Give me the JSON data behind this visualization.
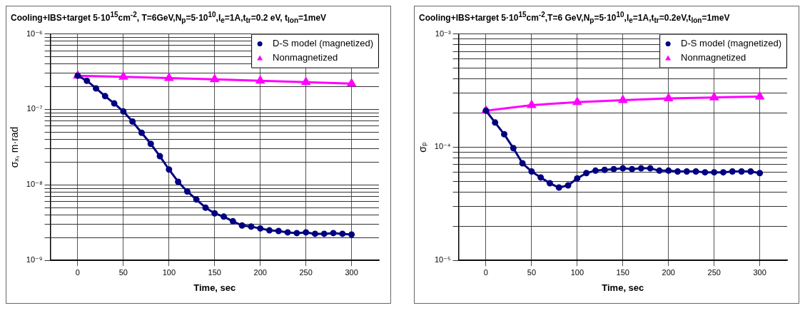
{
  "chart_data": [
    {
      "type": "line",
      "title": "Cooling+IBS+target 5·10$^{15}$cm$^{-2}$, T=6GeV,N$_{p}$=5·10$^{10}$,I$_{e}$=1A,t$_{tr}$=0.2 eV, t$_{lon}$=1meV",
      "xlabel": "Time, sec",
      "ylabel": "σₓ, m·rad",
      "log": "y",
      "grid": true,
      "legend": "top right",
      "xlim": [
        -30,
        330
      ],
      "xticks": [
        0,
        50,
        100,
        150,
        200,
        250,
        300
      ],
      "ylim": [
        1e-09,
        1e-06
      ],
      "yticks": [
        {
          "value": 1e-09,
          "label": "10⁻⁹"
        },
        {
          "value": 2e-09,
          "label": null
        },
        {
          "value": 3e-09,
          "label": null
        },
        {
          "value": 4e-09,
          "label": null
        },
        {
          "value": 5e-09,
          "label": null
        },
        {
          "value": 6e-09,
          "label": null
        },
        {
          "value": 7e-09,
          "label": null
        },
        {
          "value": 8e-09,
          "label": null
        },
        {
          "value": 9e-09,
          "label": null
        },
        {
          "value": 1e-08,
          "label": "10⁻⁸"
        },
        {
          "value": 2e-08,
          "label": null
        },
        {
          "value": 3e-08,
          "label": null
        },
        {
          "value": 4e-08,
          "label": null
        },
        {
          "value": 5e-08,
          "label": null
        },
        {
          "value": 6e-08,
          "label": null
        },
        {
          "value": 7e-08,
          "label": null
        },
        {
          "value": 8e-08,
          "label": null
        },
        {
          "value": 9e-08,
          "label": null
        },
        {
          "value": 1e-07,
          "label": "10⁻⁷"
        },
        {
          "value": 2e-07,
          "label": null
        },
        {
          "value": 3e-07,
          "label": null
        },
        {
          "value": 4e-07,
          "label": null
        },
        {
          "value": 5e-07,
          "label": null
        },
        {
          "value": 6e-07,
          "label": null
        },
        {
          "value": 7e-07,
          "label": null
        },
        {
          "value": 8e-07,
          "label": null
        },
        {
          "value": 9e-07,
          "label": null
        },
        {
          "value": 1e-06,
          "label": "10⁻⁶"
        }
      ],
      "series": [
        {
          "name": "D-S model (magnetized)",
          "color": "#000080",
          "marker": "circle",
          "x": [
            0,
            10,
            20,
            30,
            40,
            50,
            60,
            70,
            80,
            90,
            100,
            110,
            120,
            130,
            140,
            150,
            160,
            170,
            180,
            190,
            200,
            210,
            220,
            230,
            240,
            250,
            260,
            270,
            280,
            290,
            300
          ],
          "values": [
            2.8e-07,
            2.4e-07,
            1.9e-07,
            1.5e-07,
            1.2e-07,
            9.4e-08,
            6.9e-08,
            4.9e-08,
            3.5e-08,
            2.4e-08,
            1.6e-08,
            1.1e-08,
            8.2e-09,
            6.4e-09,
            5e-09,
            4.2e-09,
            3.8e-09,
            3.3e-09,
            2.9e-09,
            2.8e-09,
            2.65e-09,
            2.5e-09,
            2.45e-09,
            2.35e-09,
            2.3e-09,
            2.35e-09,
            2.25e-09,
            2.25e-09,
            2.3e-09,
            2.25e-09,
            2.2e-09
          ]
        },
        {
          "name": "Nonmagnetized",
          "color": "#ff00ff",
          "marker": "triangle",
          "x": [
            0,
            50,
            100,
            150,
            200,
            250,
            300
          ],
          "values": [
            2.8e-07,
            2.7e-07,
            2.6e-07,
            2.5e-07,
            2.4e-07,
            2.3e-07,
            2.2e-07
          ]
        }
      ]
    },
    {
      "type": "line",
      "title": "Cooling+IBS+target 5·10$^{15}$cm$^{-2}$,T=6 GeV,N$_{p}$=5·10$^{10}$,I$_{e}$=1A,t$_{tr}$=0.2eV,t$_{lon}$=1meV",
      "xlabel": "Time, sec",
      "ylabel": "σₚ",
      "log": "y",
      "grid": true,
      "legend": "top right",
      "xlim": [
        -30,
        330
      ],
      "xticks": [
        0,
        50,
        100,
        150,
        200,
        250,
        300
      ],
      "ylim": [
        1e-05,
        0.001
      ],
      "yticks": [
        {
          "value": 1e-05,
          "label": "10⁻⁵"
        },
        {
          "value": 2e-05,
          "label": null
        },
        {
          "value": 3e-05,
          "label": null
        },
        {
          "value": 4e-05,
          "label": null
        },
        {
          "value": 5e-05,
          "label": null
        },
        {
          "value": 6e-05,
          "label": null
        },
        {
          "value": 7e-05,
          "label": null
        },
        {
          "value": 8e-05,
          "label": null
        },
        {
          "value": 9e-05,
          "label": null
        },
        {
          "value": 0.0001,
          "label": "10⁻⁴"
        },
        {
          "value": 0.0002,
          "label": null
        },
        {
          "value": 0.0003,
          "label": null
        },
        {
          "value": 0.0004,
          "label": null
        },
        {
          "value": 0.0005,
          "label": null
        },
        {
          "value": 0.0006,
          "label": null
        },
        {
          "value": 0.0007,
          "label": null
        },
        {
          "value": 0.0008,
          "label": null
        },
        {
          "value": 0.0009,
          "label": null
        },
        {
          "value": 0.001,
          "label": "10⁻³"
        }
      ],
      "series": [
        {
          "name": "D-S model (magnetized)",
          "color": "#000080",
          "marker": "circle",
          "x": [
            0,
            10,
            20,
            30,
            40,
            50,
            60,
            70,
            80,
            90,
            100,
            110,
            120,
            130,
            140,
            150,
            160,
            170,
            180,
            190,
            200,
            210,
            220,
            230,
            240,
            250,
            260,
            270,
            280,
            290,
            300
          ],
          "values": [
            0.00021,
            0.000165,
            0.00013,
            9.8e-05,
            7.2e-05,
            6.1e-05,
            5.4e-05,
            4.8e-05,
            4.4e-05,
            4.6e-05,
            5.3e-05,
            5.9e-05,
            6.2e-05,
            6.3e-05,
            6.4e-05,
            6.5e-05,
            6.4e-05,
            6.5e-05,
            6.5e-05,
            6.2e-05,
            6.2e-05,
            6.1e-05,
            6.1e-05,
            6.1e-05,
            6e-05,
            6e-05,
            6e-05,
            6.1e-05,
            6.1e-05,
            6.1e-05,
            5.9e-05
          ]
        },
        {
          "name": "Nonmagnetized",
          "color": "#ff00ff",
          "marker": "triangle",
          "x": [
            0,
            50,
            100,
            150,
            200,
            250,
            300
          ],
          "values": [
            0.00021,
            0.000235,
            0.00025,
            0.00026,
            0.00027,
            0.000275,
            0.00028
          ]
        }
      ]
    }
  ]
}
